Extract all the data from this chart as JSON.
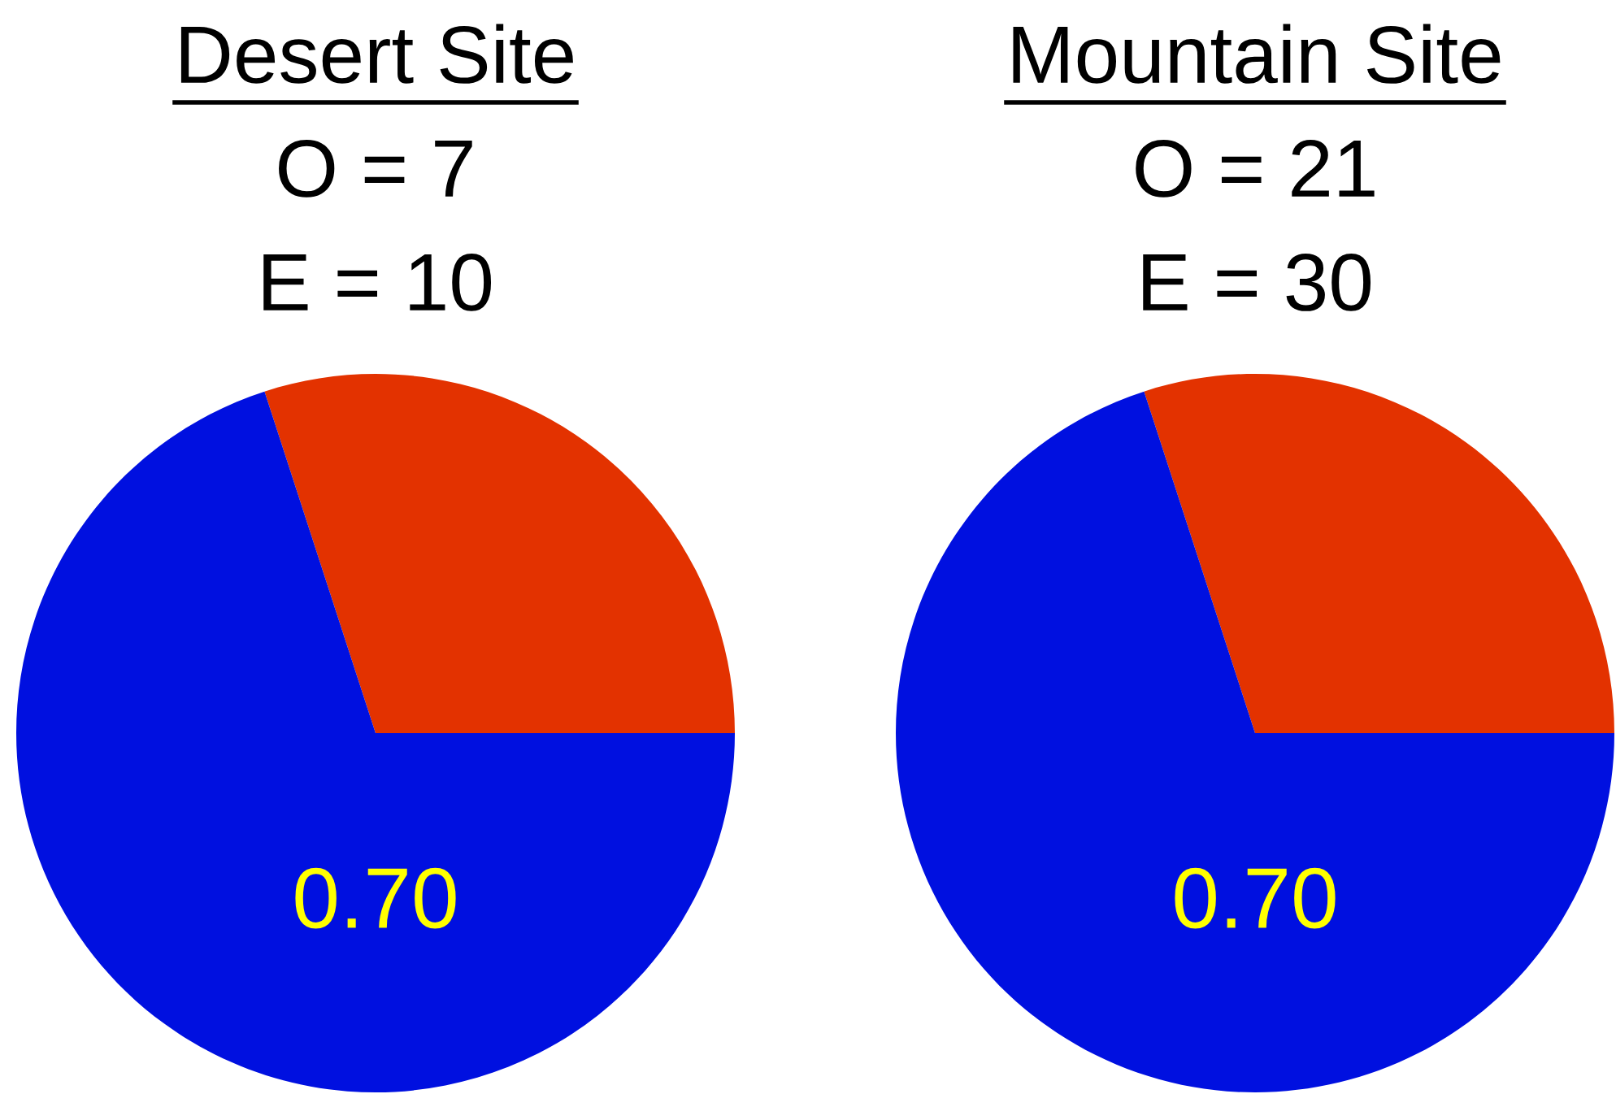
{
  "chart_data": [
    {
      "type": "pie",
      "title": "Desert Site",
      "annotations": [
        "O = 7",
        "E = 10"
      ],
      "categories": [
        null,
        null
      ],
      "values": [
        0.3,
        0.7
      ],
      "colors": [
        "#e33200",
        "#0010e0"
      ],
      "value_labels": [
        null,
        "0.70"
      ]
    },
    {
      "type": "pie",
      "title": "Mountain Site",
      "annotations": [
        "O = 21",
        "E = 30"
      ],
      "categories": [
        null,
        null
      ],
      "values": [
        0.3,
        0.7
      ],
      "colors": [
        "#e33200",
        "#0010e0"
      ],
      "value_labels": [
        null,
        "0.70"
      ]
    }
  ]
}
